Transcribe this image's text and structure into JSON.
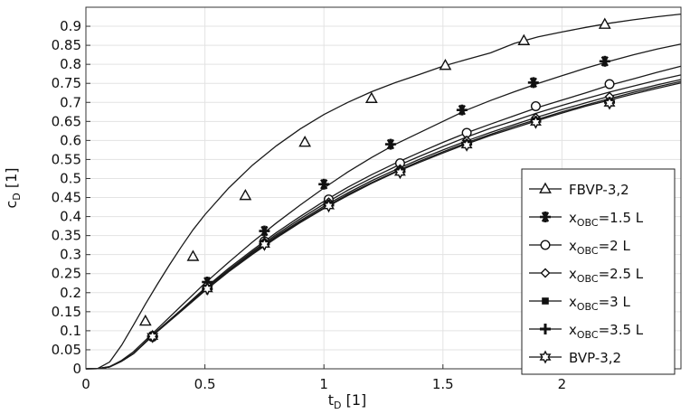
{
  "chart_data": {
    "type": "line",
    "xlabel": {
      "main": "t",
      "sub": "D",
      "rest": " [1]"
    },
    "ylabel": {
      "main": "c",
      "sub": "D",
      "rest": " [1]"
    },
    "xlim": [
      0,
      2.5
    ],
    "ylim": [
      0,
      0.95
    ],
    "x_ticks": [
      0,
      0.5,
      1,
      1.5,
      2
    ],
    "x_tick_labels": [
      "0",
      "0.5",
      "1",
      "1.5",
      "2"
    ],
    "y_ticks": [
      0,
      0.05,
      0.1,
      0.15,
      0.2,
      0.25,
      0.3,
      0.35,
      0.4,
      0.45,
      0.5,
      0.55,
      0.6,
      0.65,
      0.7,
      0.75,
      0.8,
      0.85,
      0.9
    ],
    "y_tick_labels": [
      "0",
      "0.05",
      "0.1",
      "0.15",
      "0.2",
      "0.25",
      "0.3",
      "0.35",
      "0.4",
      "0.45",
      "0.5",
      "0.55",
      "0.6",
      "0.65",
      "0.7",
      "0.75",
      "0.8",
      "0.85",
      "0.9"
    ],
    "grid": true,
    "legend_position": "lower-right",
    "series": [
      {
        "name": "FBVP-3,2",
        "label": {
          "main": "FBVP-3,2",
          "sub": "",
          "rest": ""
        },
        "marker": "triangle",
        "color": "#1a1a1a",
        "x": [
          0,
          0.05,
          0.1,
          0.15,
          0.2,
          0.25,
          0.3,
          0.35,
          0.4,
          0.45,
          0.5,
          0.6,
          0.7,
          0.8,
          0.9,
          1.0,
          1.1,
          1.2,
          1.3,
          1.4,
          1.5,
          1.6,
          1.7,
          1.8,
          1.9,
          2.0,
          2.1,
          2.2,
          2.3,
          2.4,
          2.5
        ],
        "y": [
          0,
          0.001,
          0.018,
          0.062,
          0.115,
          0.17,
          0.222,
          0.272,
          0.32,
          0.365,
          0.405,
          0.475,
          0.535,
          0.586,
          0.63,
          0.668,
          0.7,
          0.728,
          0.752,
          0.773,
          0.795,
          0.813,
          0.83,
          0.855,
          0.872,
          0.885,
          0.897,
          0.908,
          0.917,
          0.925,
          0.932
        ],
        "markers": [
          [
            0.25,
            0.125
          ],
          [
            0.45,
            0.295
          ],
          [
            0.67,
            0.455
          ],
          [
            0.92,
            0.595
          ],
          [
            1.2,
            0.71
          ],
          [
            1.51,
            0.797
          ],
          [
            1.84,
            0.862
          ],
          [
            2.18,
            0.905
          ]
        ]
      },
      {
        "name": "xOBC=1.5 L",
        "label": {
          "main": "x",
          "sub": "OBC",
          "rest": "=1.5 L"
        },
        "marker": "asterisk",
        "color": "#1a1a1a",
        "x": [
          0,
          0.05,
          0.1,
          0.15,
          0.2,
          0.3,
          0.4,
          0.5,
          0.6,
          0.7,
          0.8,
          0.9,
          1.0,
          1.1,
          1.2,
          1.3,
          1.4,
          1.5,
          1.6,
          1.7,
          1.8,
          1.9,
          2.0,
          2.1,
          2.2,
          2.3,
          2.4,
          2.5
        ],
        "y": [
          0,
          0.0005,
          0.006,
          0.022,
          0.045,
          0.105,
          0.165,
          0.225,
          0.28,
          0.333,
          0.383,
          0.43,
          0.475,
          0.517,
          0.555,
          0.59,
          0.62,
          0.65,
          0.68,
          0.705,
          0.728,
          0.75,
          0.77,
          0.79,
          0.808,
          0.825,
          0.84,
          0.853
        ],
        "markers": [
          [
            0.28,
            0.085
          ],
          [
            0.51,
            0.228
          ],
          [
            0.75,
            0.362
          ],
          [
            1.0,
            0.485
          ],
          [
            1.28,
            0.59
          ],
          [
            1.58,
            0.68
          ],
          [
            1.88,
            0.752
          ],
          [
            2.18,
            0.808
          ]
        ]
      },
      {
        "name": "xOBC=2 L",
        "label": {
          "main": "x",
          "sub": "OBC",
          "rest": "=2 L"
        },
        "marker": "circle",
        "color": "#1a1a1a",
        "x": [
          0,
          0.05,
          0.1,
          0.15,
          0.2,
          0.3,
          0.4,
          0.5,
          0.6,
          0.7,
          0.8,
          0.9,
          1.0,
          1.1,
          1.2,
          1.3,
          1.4,
          1.5,
          1.6,
          1.7,
          1.8,
          1.9,
          2.0,
          2.1,
          2.2,
          2.3,
          2.4,
          2.5
        ],
        "y": [
          0,
          0.0005,
          0.005,
          0.02,
          0.04,
          0.1,
          0.155,
          0.212,
          0.264,
          0.312,
          0.358,
          0.4,
          0.44,
          0.477,
          0.51,
          0.54,
          0.568,
          0.595,
          0.62,
          0.643,
          0.665,
          0.687,
          0.706,
          0.725,
          0.745,
          0.762,
          0.779,
          0.795
        ],
        "markers": [
          [
            0.28,
            0.085
          ],
          [
            0.51,
            0.215
          ],
          [
            0.75,
            0.335
          ],
          [
            1.02,
            0.445
          ],
          [
            1.32,
            0.54
          ],
          [
            1.6,
            0.62
          ],
          [
            1.89,
            0.69
          ],
          [
            2.2,
            0.748
          ]
        ]
      },
      {
        "name": "xOBC=2.5 L",
        "label": {
          "main": "x",
          "sub": "OBC",
          "rest": "=2.5 L"
        },
        "marker": "diamond",
        "color": "#1a1a1a",
        "x": [
          0,
          0.05,
          0.1,
          0.15,
          0.2,
          0.3,
          0.4,
          0.5,
          0.6,
          0.7,
          0.8,
          0.9,
          1.0,
          1.1,
          1.2,
          1.3,
          1.4,
          1.5,
          1.6,
          1.7,
          1.8,
          1.9,
          2.0,
          2.1,
          2.2,
          2.3,
          2.4,
          2.5
        ],
        "y": [
          0,
          0.0005,
          0.005,
          0.02,
          0.04,
          0.1,
          0.154,
          0.21,
          0.26,
          0.308,
          0.353,
          0.394,
          0.433,
          0.469,
          0.501,
          0.531,
          0.558,
          0.584,
          0.609,
          0.632,
          0.652,
          0.673,
          0.692,
          0.71,
          0.727,
          0.743,
          0.758,
          0.772
        ],
        "markers": [
          [
            0.28,
            0.085
          ],
          [
            0.51,
            0.213
          ],
          [
            0.75,
            0.333
          ],
          [
            1.02,
            0.438
          ],
          [
            1.32,
            0.525
          ],
          [
            1.6,
            0.6
          ],
          [
            1.89,
            0.66
          ],
          [
            2.2,
            0.715
          ]
        ]
      },
      {
        "name": "xOBC=3 L",
        "label": {
          "main": "x",
          "sub": "OBC",
          "rest": "=3 L"
        },
        "marker": "square",
        "color": "#1a1a1a",
        "x": [
          0,
          0.05,
          0.1,
          0.15,
          0.2,
          0.3,
          0.4,
          0.5,
          0.6,
          0.7,
          0.8,
          0.9,
          1.0,
          1.1,
          1.2,
          1.3,
          1.4,
          1.5,
          1.6,
          1.7,
          1.8,
          1.9,
          2.0,
          2.1,
          2.2,
          2.3,
          2.4,
          2.5
        ],
        "y": [
          0,
          0.0005,
          0.005,
          0.02,
          0.04,
          0.099,
          0.153,
          0.208,
          0.258,
          0.305,
          0.349,
          0.389,
          0.427,
          0.462,
          0.494,
          0.523,
          0.55,
          0.575,
          0.599,
          0.621,
          0.642,
          0.662,
          0.681,
          0.699,
          0.716,
          0.731,
          0.746,
          0.76
        ],
        "markers": [
          [
            0.28,
            0.085
          ],
          [
            0.51,
            0.212
          ],
          [
            0.75,
            0.33
          ],
          [
            1.02,
            0.432
          ],
          [
            1.32,
            0.52
          ],
          [
            1.6,
            0.592
          ],
          [
            1.89,
            0.652
          ],
          [
            2.2,
            0.702
          ]
        ]
      },
      {
        "name": "xOBC=3.5 L",
        "label": {
          "main": "x",
          "sub": "OBC",
          "rest": "=3.5 L"
        },
        "marker": "plus",
        "color": "#1a1a1a",
        "x": [
          0,
          0.05,
          0.1,
          0.15,
          0.2,
          0.3,
          0.4,
          0.5,
          0.6,
          0.7,
          0.8,
          0.9,
          1.0,
          1.1,
          1.2,
          1.3,
          1.4,
          1.5,
          1.6,
          1.7,
          1.8,
          1.9,
          2.0,
          2.1,
          2.2,
          2.3,
          2.4,
          2.5
        ],
        "y": [
          0,
          0.0005,
          0.005,
          0.02,
          0.04,
          0.098,
          0.152,
          0.206,
          0.256,
          0.302,
          0.346,
          0.386,
          0.423,
          0.458,
          0.489,
          0.518,
          0.545,
          0.57,
          0.594,
          0.616,
          0.637,
          0.656,
          0.675,
          0.693,
          0.71,
          0.726,
          0.741,
          0.755
        ],
        "markers": [
          [
            0.28,
            0.085
          ],
          [
            0.51,
            0.21
          ],
          [
            0.75,
            0.328
          ],
          [
            1.02,
            0.43
          ],
          [
            1.32,
            0.518
          ],
          [
            1.6,
            0.59
          ],
          [
            1.89,
            0.65
          ],
          [
            2.2,
            0.7
          ]
        ]
      },
      {
        "name": "BVP-3,2",
        "label": {
          "main": "BVP-3,2",
          "sub": "",
          "rest": ""
        },
        "marker": "star",
        "color": "#1a1a1a",
        "x": [
          0,
          0.05,
          0.1,
          0.15,
          0.2,
          0.3,
          0.4,
          0.5,
          0.6,
          0.7,
          0.8,
          0.9,
          1.0,
          1.1,
          1.2,
          1.3,
          1.4,
          1.5,
          1.6,
          1.7,
          1.8,
          1.9,
          2.0,
          2.1,
          2.2,
          2.3,
          2.4,
          2.5
        ],
        "y": [
          0,
          0.0005,
          0.005,
          0.02,
          0.04,
          0.098,
          0.151,
          0.205,
          0.255,
          0.301,
          0.344,
          0.384,
          0.421,
          0.455,
          0.487,
          0.516,
          0.542,
          0.567,
          0.591,
          0.613,
          0.633,
          0.653,
          0.672,
          0.69,
          0.706,
          0.722,
          0.737,
          0.751
        ],
        "markers": [
          [
            0.28,
            0.085
          ],
          [
            0.51,
            0.21
          ],
          [
            0.75,
            0.327
          ],
          [
            1.02,
            0.428
          ],
          [
            1.32,
            0.516
          ],
          [
            1.6,
            0.588
          ],
          [
            1.89,
            0.648
          ],
          [
            2.2,
            0.698
          ]
        ]
      }
    ]
  }
}
